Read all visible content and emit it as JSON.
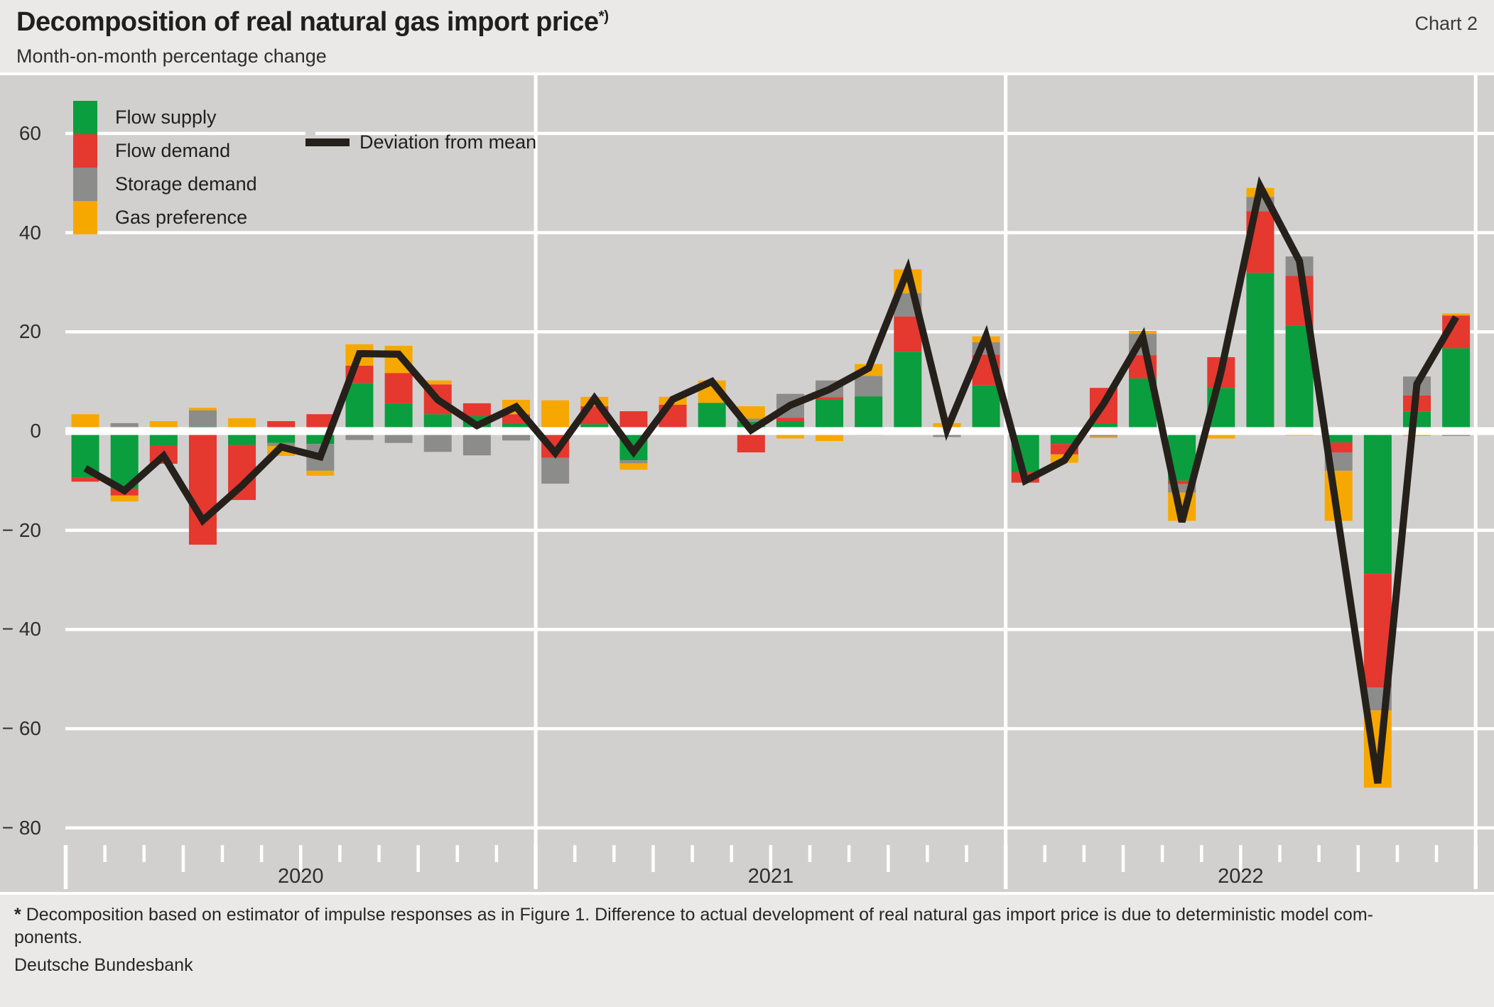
{
  "header": {
    "title": "Decomposition of real natural gas import price",
    "title_sup": "*)",
    "chart_label": "Chart 2",
    "subtitle": "Month-on-month percentage change"
  },
  "legend": {
    "items": [
      {
        "label": "Flow supply",
        "color": "#0a9e3e"
      },
      {
        "label": "Flow demand",
        "color": "#e5382f"
      },
      {
        "label": "Storage demand",
        "color": "#8c8c8b"
      },
      {
        "label": "Gas preference",
        "color": "#f7a800"
      }
    ],
    "line_label": "Deviation from mean",
    "line_color": "#26201b"
  },
  "footer": {
    "marker": "*",
    "line1": "Decomposition based on estimator of impulse responses as in Figure 1. Difference to actual development of real natural gas import price is due to deterministic model com-",
    "line2": "ponents.",
    "source": "Deutsche Bundesbank"
  },
  "colors": {
    "plot_background": "#d1d0ce",
    "page_background": "#eae9e7",
    "gridline": "#ffffff",
    "deviation_line": "#26201b"
  },
  "chart_data": {
    "type": "bar",
    "subtype": "stacked-bar-with-line",
    "title": "Decomposition of real natural gas import price",
    "xlabel": "",
    "ylabel": "Month-on-month percentage change",
    "ylim": [
      -80,
      60
    ],
    "grid": true,
    "legend_position": "top-left",
    "categories": [
      "2020-01",
      "2020-02",
      "2020-03",
      "2020-04",
      "2020-05",
      "2020-06",
      "2020-07",
      "2020-08",
      "2020-09",
      "2020-10",
      "2020-11",
      "2020-12",
      "2021-01",
      "2021-02",
      "2021-03",
      "2021-04",
      "2021-05",
      "2021-06",
      "2021-07",
      "2021-08",
      "2021-09",
      "2021-10",
      "2021-11",
      "2021-12",
      "2022-01",
      "2022-02",
      "2022-03",
      "2022-04",
      "2022-05",
      "2022-06",
      "2022-07",
      "2022-08",
      "2022-09",
      "2022-10",
      "2022-11",
      "2022-12"
    ],
    "series": [
      {
        "name": "Flow supply",
        "color": "#0a9e3e",
        "values": [
          -9.4,
          -11.6,
          -3.0,
          0.9,
          -2.8,
          -2.4,
          -2.6,
          9.7,
          5.6,
          3.4,
          3.0,
          1.5,
          0.5,
          1.4,
          -5.9,
          0,
          5.7,
          1.9,
          2.0,
          6.3,
          7.0,
          16.0,
          0,
          9.2,
          -8.3,
          -2.6,
          1.5,
          10.6,
          -10.0,
          8.7,
          31.9,
          21.2,
          -2.3,
          -28.8,
          3.9,
          16.7
        ]
      },
      {
        "name": "Flow demand",
        "color": "#e5382f",
        "values": [
          -0.8,
          -1.4,
          -3.6,
          -22.9,
          -11.1,
          2.0,
          3.4,
          3.5,
          6.1,
          6.0,
          2.6,
          1.9,
          -5.4,
          3.6,
          4.0,
          5.3,
          0,
          -4.3,
          0.7,
          0.5,
          -0.8,
          7.1,
          -0.7,
          6.2,
          -2.1,
          -2.1,
          7.2,
          4.7,
          -0.7,
          6.2,
          12.4,
          10.1,
          -2.0,
          -22.9,
          3.3,
          6.6
        ]
      },
      {
        "name": "Storage demand",
        "color": "#8c8c8b",
        "values": [
          0,
          1.6,
          0,
          3.3,
          0.6,
          -0.6,
          -5.4,
          -1.8,
          -2.4,
          -4.2,
          -4.9,
          -1.9,
          -5.2,
          0,
          -0.6,
          -0.3,
          0,
          0.6,
          4.8,
          3.4,
          4.1,
          4.7,
          -0.5,
          2.5,
          0,
          0,
          -1.1,
          4.3,
          -1.7,
          0,
          2.9,
          3.9,
          -3.7,
          -4.6,
          3.8,
          -1.0
        ]
      },
      {
        "name": "Gas preference",
        "color": "#f7a800",
        "values": [
          3.4,
          -1.2,
          2.0,
          0.5,
          2.0,
          -2.0,
          -1.0,
          4.3,
          5.5,
          0.8,
          0,
          2.9,
          5.7,
          1.9,
          -1.3,
          1.6,
          4.5,
          2.5,
          -1.5,
          -2.0,
          2.4,
          4.8,
          1.6,
          1.2,
          0,
          -1.7,
          -0.3,
          0.6,
          -5.7,
          -1.5,
          1.8,
          -0.9,
          -10.1,
          -15.6,
          -1.0,
          0.4
        ]
      }
    ],
    "line": {
      "name": "Deviation from mean",
      "color": "#26201b",
      "values": [
        -7.5,
        -12,
        -5,
        -18,
        -11,
        -3.2,
        -5.2,
        15.6,
        15.5,
        6.3,
        1.1,
        4.9,
        -4.4,
        6.6,
        -4.2,
        6.4,
        10,
        0.2,
        5.2,
        8.4,
        12.7,
        32.5,
        0.3,
        19.2,
        -10,
        -5.9,
        5.5,
        19,
        -18.3,
        12,
        49.3,
        34.3,
        -18.5,
        -71,
        9.5,
        23
      ]
    },
    "yticks": [
      {
        "v": 60,
        "label": "60"
      },
      {
        "v": 40,
        "label": "40"
      },
      {
        "v": 20,
        "label": "20"
      },
      {
        "v": 0,
        "label": "0"
      },
      {
        "v": -20,
        "label": "− 20"
      },
      {
        "v": -40,
        "label": "− 40"
      },
      {
        "v": -60,
        "label": "− 60"
      },
      {
        "v": -80,
        "label": "− 80"
      }
    ],
    "years": [
      {
        "label": "2020"
      },
      {
        "label": "2021"
      },
      {
        "label": "2022"
      }
    ]
  }
}
